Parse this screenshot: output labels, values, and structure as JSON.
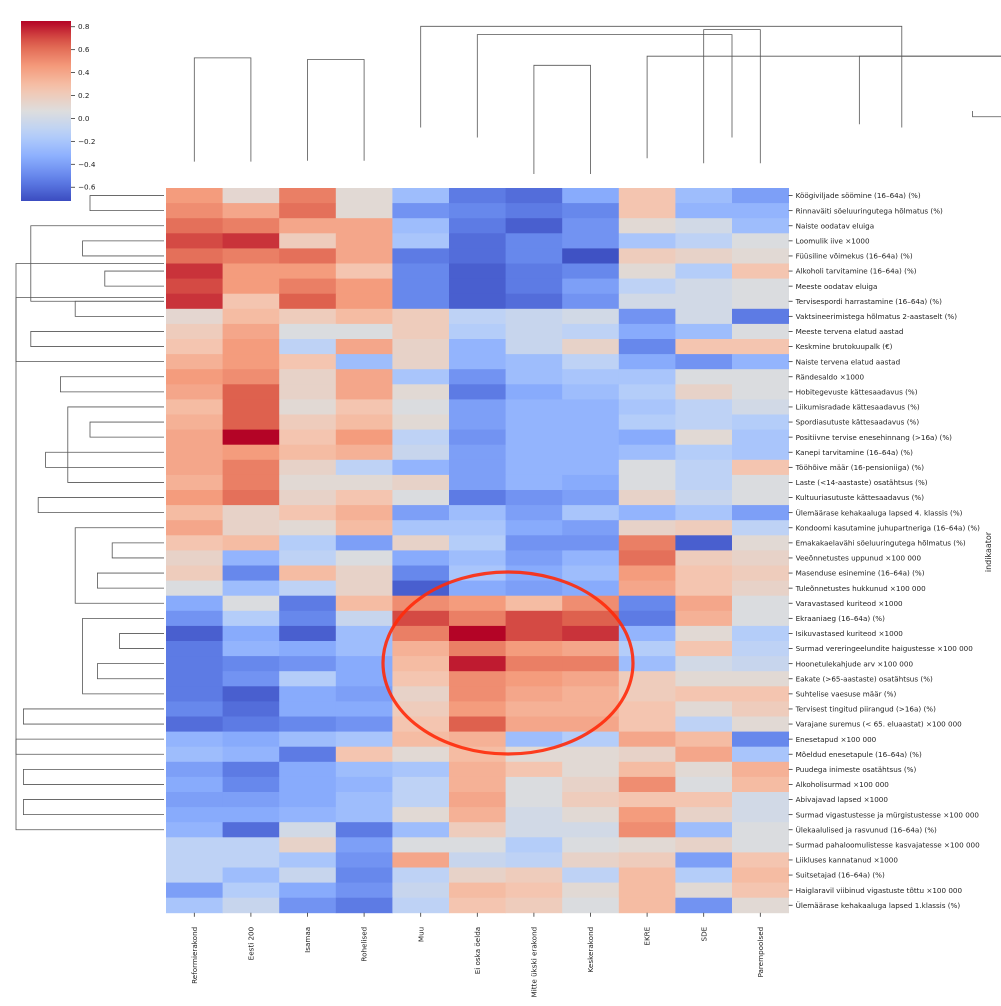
{
  "chart_data": {
    "type": "heatmap",
    "title": "",
    "xlabel": "",
    "ylabel": "indikaator",
    "columns": [
      "Reformierakond",
      "Eesti 200",
      "Isamaa",
      "Rohelised",
      "Muu",
      "Ei oska öelda",
      "Mitte ükski erakond",
      "Keskerakond",
      "EKRE",
      "SDE",
      "Parempoolsed"
    ],
    "rows": [
      "Köögiviljade söömine (16–64a) (%)",
      "Rinnaväiti söeluuringutega hõlmatus (%)",
      "Naiste oodatav eluiga",
      "Loomulik iive ×1000",
      "Füüsiline võimekus (16–64a) (%)",
      "Alkoholi tarvitamine (16–64a) (%)",
      "Meeste oodatav eluiga",
      "Tervisespordi harrastamine (16–64a) (%)",
      "Vaktsineerimistega hõlmatus 2-aastaselt (%)",
      "Meeste tervena elatud aastad",
      "Keskmine brutokuupalk (€)",
      "Naiste tervena elatud aastad",
      "Rändesaldo ×1000",
      "Hobitegevuste kättesaadavus (%)",
      "Liikumisradade kättesaadavus (%)",
      "Spordiasutuste kättesaadavus (%)",
      "Positiivne tervise enesehinnang (>16a) (%)",
      "Kanepi tarvitamine (16–64a) (%)",
      "Tööhõive määr (16-pensioniiga) (%)",
      "Laste (<14-aastaste) osatähtsus (%)",
      "Kultuuriasutuste kättesaadavus (%)",
      "Ülemäärase kehakaaluga lapsed 4. klassis (%)",
      "Kondoomi kasutamine juhupartneriga (16–64a) (%)",
      "Emakakaelavähi söeluuringutega hõlmatus (%)",
      "Veeõnnetustes uppunud ×100 000",
      "Masenduse esinemine (16–64a) (%)",
      "Tuleõnnetustes hukkunud ×100 000",
      "Varavastased kuriteod ×1000",
      "Ekraaniaeg (16–64a) (%)",
      "Isikuvastased kuriteod ×1000",
      "Surmad vereringeelundite haigustesse ×100 000",
      "Hoonetulekahjude arv ×100 000",
      "Eakate (>65-aastaste) osatähtsus (%)",
      "Suhtelise vaesuse määr (%)",
      "Tervisest tingitud piirangud (>16a) (%)",
      "Varajane suremus (< 65. eluaastat) ×100 000",
      "Enesetapud  ×100 000",
      "Mõeldud enesetapule (16–64a) (%)",
      "Puudega inimeste osatähtsus (%)",
      "Alkoholisurmad ×100 000",
      "Abivajavad lapsed ×1000",
      "Surmad vigastustesse ja mürgistustesse ×100 000",
      "Ülekaalulised ja rasvunud (16–64a) (%)",
      "Surmad pahaloomulistesse kasvajatesse ×100 000",
      "Liikluses kannatanud ×1000",
      "Suitsetajad (16–64a) (%)",
      "Haiglaravil viibinud vigastuste tõttu ×100 000",
      "Ülemäärase kehakaaluga lapsed 1.klassis (%)"
    ],
    "values": [
      [
        0.45,
        0.12,
        0.55,
        0.1,
        -0.25,
        -0.55,
        -0.6,
        -0.35,
        0.25,
        -0.25,
        -0.4
      ],
      [
        0.5,
        0.4,
        0.6,
        0.1,
        -0.45,
        -0.5,
        -0.55,
        -0.5,
        0.25,
        -0.3,
        -0.3
      ],
      [
        0.6,
        0.55,
        0.4,
        0.4,
        -0.25,
        -0.55,
        -0.65,
        -0.45,
        0.1,
        0.0,
        -0.25
      ],
      [
        0.7,
        0.75,
        0.2,
        0.4,
        -0.2,
        -0.6,
        -0.5,
        -0.45,
        -0.2,
        -0.1,
        0.05
      ],
      [
        0.6,
        0.55,
        0.6,
        0.4,
        -0.55,
        -0.6,
        -0.5,
        -0.7,
        0.2,
        0.15,
        0.1
      ],
      [
        0.75,
        0.45,
        0.45,
        0.25,
        -0.5,
        -0.65,
        -0.55,
        -0.5,
        0.1,
        -0.15,
        0.25
      ],
      [
        0.7,
        0.45,
        0.55,
        0.45,
        -0.5,
        -0.65,
        -0.55,
        -0.4,
        -0.1,
        0.0,
        0.05
      ],
      [
        0.75,
        0.25,
        0.65,
        0.45,
        -0.5,
        -0.65,
        -0.6,
        -0.45,
        0.0,
        0.0,
        0.05
      ],
      [
        0.12,
        0.3,
        0.2,
        0.3,
        0.2,
        -0.1,
        -0.05,
        0.0,
        -0.45,
        0.0,
        -0.55
      ],
      [
        0.2,
        0.4,
        0.05,
        0.05,
        0.2,
        -0.15,
        -0.05,
        -0.1,
        -0.35,
        -0.25,
        0.05
      ],
      [
        0.25,
        0.45,
        -0.1,
        0.4,
        0.15,
        -0.3,
        -0.05,
        0.15,
        -0.5,
        0.25,
        0.25
      ],
      [
        0.35,
        0.45,
        0.25,
        -0.25,
        0.15,
        -0.3,
        -0.25,
        -0.1,
        -0.35,
        -0.45,
        -0.3
      ],
      [
        0.45,
        0.5,
        0.15,
        0.4,
        -0.2,
        -0.45,
        -0.25,
        -0.2,
        -0.2,
        0.05,
        0.05
      ],
      [
        0.4,
        0.65,
        0.15,
        0.4,
        0.1,
        -0.55,
        -0.35,
        -0.25,
        -0.15,
        0.15,
        0.05
      ],
      [
        0.3,
        0.65,
        0.1,
        0.25,
        0.05,
        -0.4,
        -0.3,
        -0.3,
        -0.2,
        -0.1,
        0.0
      ],
      [
        0.35,
        0.65,
        0.2,
        0.3,
        0.1,
        -0.4,
        -0.3,
        -0.3,
        -0.15,
        -0.1,
        -0.15
      ],
      [
        0.4,
        0.9,
        0.25,
        0.45,
        -0.1,
        -0.45,
        -0.3,
        -0.3,
        -0.35,
        0.1,
        -0.2
      ],
      [
        0.4,
        0.45,
        0.3,
        0.35,
        -0.05,
        -0.4,
        -0.3,
        -0.3,
        -0.25,
        -0.15,
        -0.2
      ],
      [
        0.4,
        0.55,
        0.15,
        -0.1,
        -0.3,
        -0.4,
        -0.3,
        -0.3,
        0.05,
        -0.1,
        0.25
      ],
      [
        0.35,
        0.55,
        0.1,
        0.1,
        0.15,
        -0.4,
        -0.3,
        -0.35,
        0.05,
        -0.1,
        0.05
      ],
      [
        0.45,
        0.6,
        0.15,
        0.25,
        0.05,
        -0.55,
        -0.45,
        -0.4,
        0.15,
        -0.05,
        0.05
      ],
      [
        0.3,
        0.15,
        0.25,
        0.35,
        -0.4,
        -0.25,
        -0.4,
        -0.2,
        -0.3,
        -0.2,
        -0.4
      ],
      [
        0.4,
        0.15,
        0.1,
        0.3,
        -0.2,
        -0.2,
        -0.35,
        -0.4,
        0.15,
        0.2,
        -0.1
      ],
      [
        0.25,
        0.3,
        -0.15,
        -0.4,
        0.15,
        -0.15,
        -0.45,
        -0.45,
        0.55,
        -0.65,
        0.1
      ],
      [
        0.15,
        -0.3,
        -0.1,
        0.05,
        -0.35,
        -0.25,
        -0.4,
        -0.3,
        0.6,
        0.2,
        0.15
      ],
      [
        0.2,
        -0.5,
        0.3,
        0.15,
        -0.5,
        -0.2,
        -0.35,
        -0.25,
        0.45,
        0.25,
        0.2
      ],
      [
        0.05,
        -0.25,
        -0.1,
        0.15,
        -0.65,
        -0.35,
        -0.4,
        -0.35,
        0.4,
        0.25,
        0.15
      ],
      [
        -0.35,
        0.05,
        -0.55,
        0.3,
        0.5,
        0.45,
        0.3,
        0.5,
        -0.5,
        0.4,
        0.05
      ],
      [
        -0.45,
        -0.15,
        -0.5,
        -0.05,
        0.7,
        0.55,
        0.7,
        0.65,
        -0.55,
        0.35,
        0.05
      ],
      [
        -0.65,
        -0.35,
        -0.65,
        -0.25,
        0.55,
        0.85,
        0.7,
        0.75,
        -0.3,
        0.1,
        -0.15
      ],
      [
        -0.55,
        -0.3,
        -0.35,
        -0.25,
        0.35,
        0.55,
        0.45,
        0.4,
        -0.15,
        0.25,
        -0.1
      ],
      [
        -0.55,
        -0.5,
        -0.45,
        -0.35,
        0.3,
        0.8,
        0.55,
        0.55,
        -0.25,
        0.0,
        -0.05
      ],
      [
        -0.55,
        -0.45,
        -0.15,
        -0.35,
        0.25,
        0.5,
        0.45,
        0.4,
        0.2,
        0.1,
        0.1
      ],
      [
        -0.55,
        -0.65,
        -0.35,
        -0.4,
        0.15,
        0.5,
        0.4,
        0.35,
        0.2,
        0.25,
        0.25
      ],
      [
        -0.5,
        -0.6,
        -0.35,
        -0.35,
        0.2,
        0.45,
        0.35,
        0.35,
        0.25,
        0.1,
        0.2
      ],
      [
        -0.6,
        -0.55,
        -0.5,
        -0.45,
        0.25,
        0.65,
        0.4,
        0.4,
        0.25,
        -0.1,
        0.1
      ],
      [
        -0.3,
        -0.35,
        -0.25,
        -0.2,
        0.3,
        0.35,
        -0.25,
        -0.15,
        0.4,
        0.3,
        -0.5
      ],
      [
        -0.25,
        -0.3,
        -0.55,
        0.25,
        0.1,
        0.3,
        0.1,
        0.1,
        0.15,
        0.4,
        -0.2
      ],
      [
        -0.4,
        -0.55,
        -0.35,
        -0.25,
        -0.2,
        0.35,
        0.25,
        0.1,
        0.3,
        0.1,
        0.35
      ],
      [
        -0.35,
        -0.5,
        -0.35,
        -0.3,
        -0.1,
        0.35,
        0.05,
        0.15,
        0.5,
        0.05,
        0.3
      ],
      [
        -0.4,
        -0.4,
        -0.35,
        -0.25,
        -0.1,
        0.4,
        0.05,
        0.2,
        0.25,
        0.25,
        0.0
      ],
      [
        -0.35,
        -0.35,
        -0.3,
        -0.25,
        0.1,
        0.35,
        0.0,
        0.1,
        0.45,
        0.15,
        0.0
      ],
      [
        -0.3,
        -0.6,
        0.0,
        -0.55,
        -0.25,
        0.2,
        0.0,
        0.0,
        0.5,
        -0.25,
        0.05
      ],
      [
        -0.1,
        -0.1,
        0.15,
        -0.4,
        0.05,
        0.05,
        -0.15,
        0.05,
        0.1,
        0.15,
        0.05
      ],
      [
        -0.1,
        -0.1,
        -0.2,
        -0.45,
        0.4,
        -0.05,
        -0.1,
        0.15,
        0.2,
        -0.4,
        0.25
      ],
      [
        -0.1,
        -0.25,
        -0.05,
        -0.5,
        -0.1,
        0.15,
        0.2,
        -0.1,
        0.3,
        -0.15,
        0.3
      ],
      [
        -0.4,
        -0.15,
        -0.35,
        -0.45,
        -0.05,
        0.3,
        0.25,
        0.1,
        0.3,
        0.1,
        0.25
      ],
      [
        -0.2,
        -0.05,
        -0.45,
        -0.55,
        -0.1,
        0.25,
        0.2,
        0.05,
        0.3,
        -0.45,
        0.1
      ]
    ],
    "colorbar": {
      "colormap": "coolwarm",
      "vmin": -0.72,
      "vmax": 0.85,
      "ticks": [
        "−0.6",
        "−0.4",
        "−0.2",
        "0.0",
        "0.2",
        "0.4",
        "0.6",
        "0.8"
      ]
    },
    "column_dendrogram": [
      [
        2,
        3,
        2.8,
        15.0
      ],
      [
        6,
        7,
        1.2,
        14.3
      ],
      [
        5,
        9.5,
        5.6,
        18.0
      ],
      [
        4,
        12.5,
        6.8,
        19.0
      ],
      [
        9,
        10,
        2.5,
        18.6
      ],
      [
        8,
        14.5,
        3.1,
        15.4
      ],
      [
        15.75,
        11.75,
        7.2,
        15.4
      ],
      [
        0,
        1,
        2.7,
        15.2
      ],
      [
        20.75,
        27.5,
        6.8,
        8.1
      ],
      [
        13.75,
        24.125,
        8.8,
        8.1
      ]
    ],
    "row_dendrogram": [
      [
        0,
        1,
        0.5,
        0.5
      ],
      [
        3,
        4,
        0.55,
        0.55
      ],
      [
        2,
        7,
        0.9,
        0.55
      ],
      [
        5,
        6,
        0.4,
        0.4
      ],
      [
        7,
        8,
        0.6,
        0.4
      ],
      [
        4.5,
        11,
        1.0,
        0.6
      ],
      [
        12,
        13,
        0.7,
        0.7
      ],
      [
        15,
        16,
        0.5,
        0.5
      ],
      [
        14,
        19,
        0.65,
        0.5
      ],
      [
        17,
        18,
        0.8,
        0.65
      ],
      [
        23,
        24,
        0.35,
        0.35
      ],
      [
        25,
        26,
        0.45,
        0.35
      ],
      [
        20,
        21,
        0.85,
        0.8
      ],
      [
        27,
        22,
        0.6,
        0.45
      ],
      [
        29,
        30,
        0.3,
        0.3
      ],
      [
        31,
        32,
        0.45,
        0.3
      ],
      [
        28,
        33,
        0.55,
        0.45
      ],
      [
        9,
        10,
        0.9,
        0.9
      ],
      [
        34,
        35,
        0.95,
        0.85
      ],
      [
        36,
        37,
        1.0,
        0.55
      ],
      [
        38,
        39,
        0.95,
        0.45
      ],
      [
        40,
        41,
        0.95,
        0.9
      ],
      [
        6.75,
        42,
        1.0,
        0.95
      ]
    ]
  }
}
